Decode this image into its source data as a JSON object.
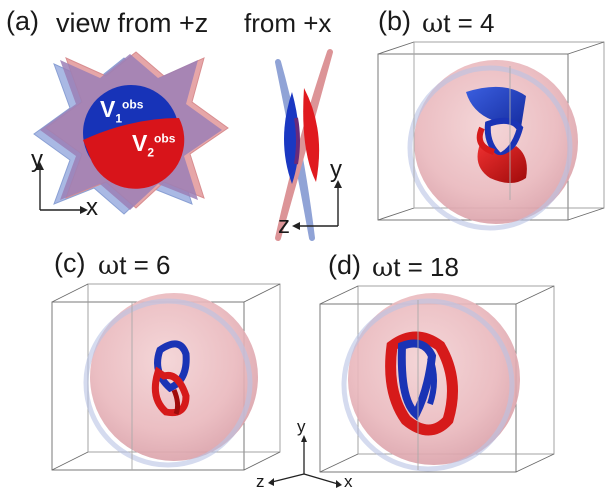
{
  "panels": {
    "a": {
      "tag": "(a)",
      "title": "view from +z",
      "side_title": "from +x",
      "v1": {
        "base": "V",
        "sub": "1",
        "sup": "obs"
      },
      "v2": {
        "base": "V",
        "sub": "2",
        "sup": "obs"
      },
      "axes_front": {
        "vertical": "y",
        "horizontal": "x"
      },
      "axes_side": {
        "vertical": "y",
        "horizontal": "z"
      }
    },
    "b": {
      "tag": "(b)",
      "omega": "ω",
      "time_label": "t = 4"
    },
    "c": {
      "tag": "(c)",
      "omega": "ω",
      "time_label": "t = 6"
    },
    "d": {
      "tag": "(d)",
      "omega": "ω",
      "time_label": "t = 18"
    }
  },
  "triad": {
    "y": "y",
    "z": "z",
    "x": "x"
  },
  "colors": {
    "blue": "#1f3fbf",
    "red": "#d01818",
    "pale_blue": "#a8b8e0",
    "pale_red": "#e8a9a9",
    "purple": "#9a80b8"
  }
}
